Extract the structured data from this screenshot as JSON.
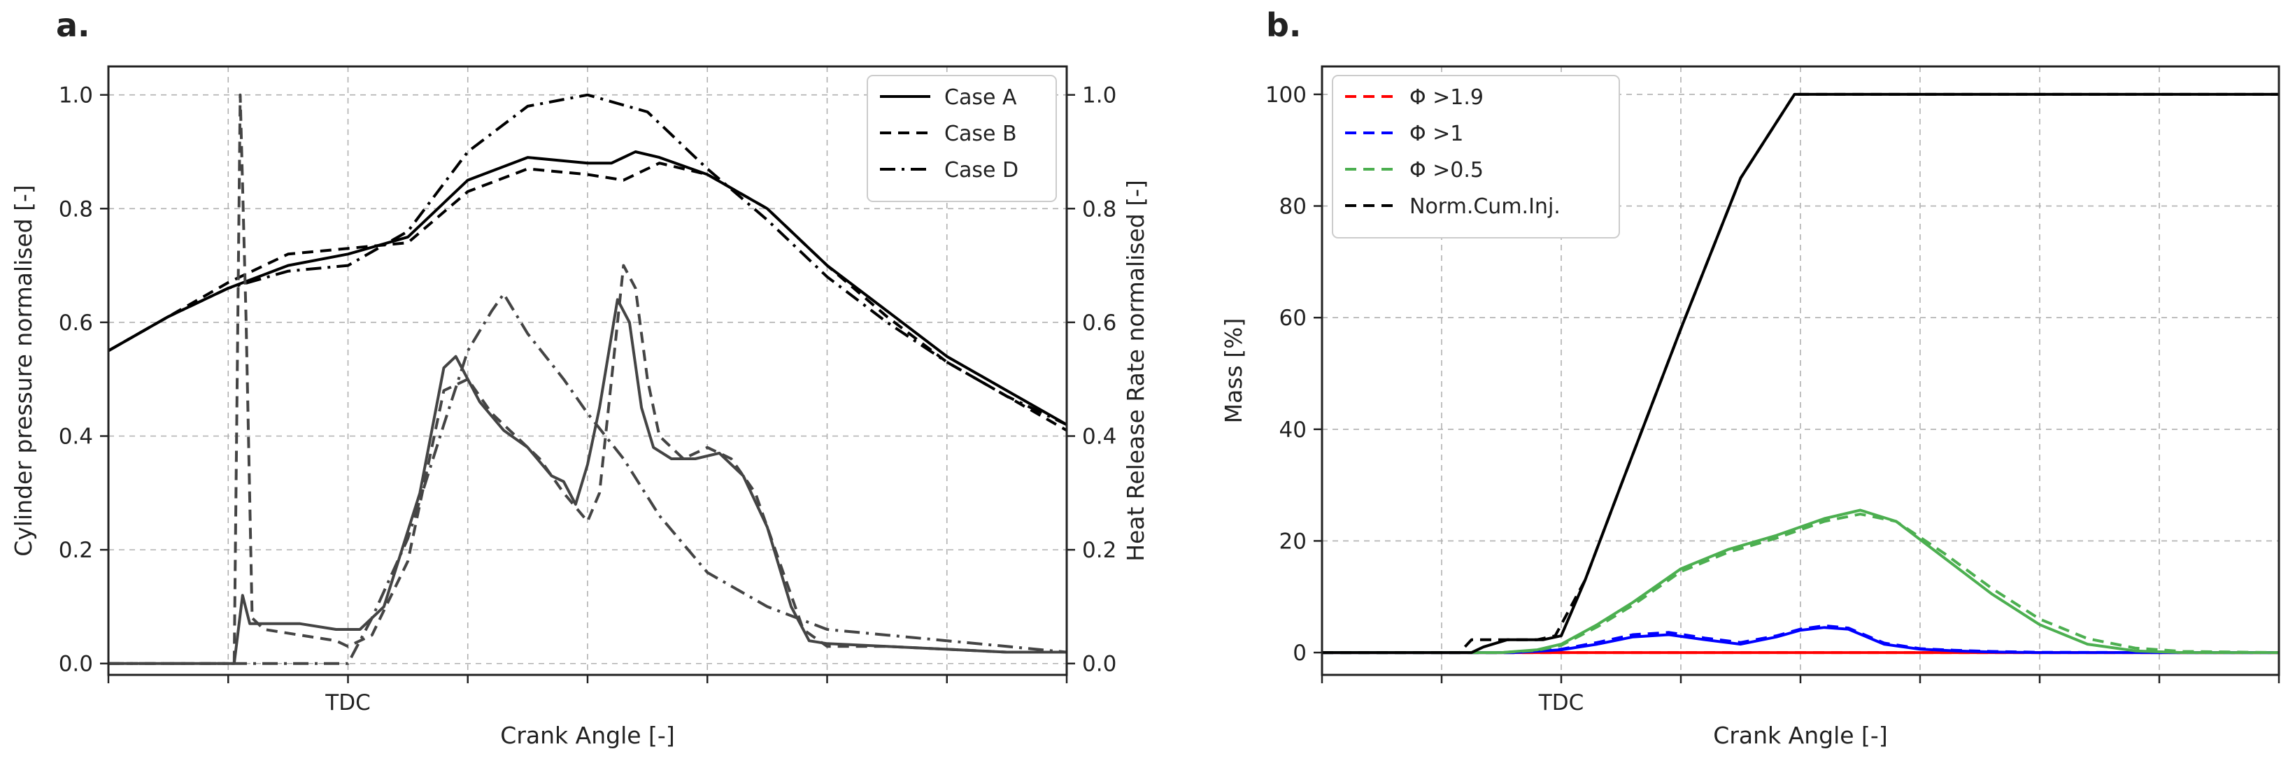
{
  "chart_data": [
    {
      "panel": "a.",
      "type": "line",
      "xlabel": "Crank Angle [-]",
      "ylabel": "Cylinder pressure normalised [-]",
      "ylabel_right": "Heat Release Rate normalised [-]",
      "x_tick_labels": [
        "",
        "",
        "TDC",
        "",
        "",
        "",
        "",
        "",
        ""
      ],
      "xlim": [
        0,
        8
      ],
      "ylim": [
        -0.02,
        1.05
      ],
      "ylim_right": [
        -0.02,
        1.05
      ],
      "y_ticks": [
        "0.0",
        "0.2",
        "0.4",
        "0.6",
        "0.8",
        "1.0"
      ],
      "y_ticks_right": [
        "0.0",
        "0.2",
        "0.4",
        "0.6",
        "0.8",
        "1.0"
      ],
      "grid": true,
      "legend_position": "upper right",
      "legend": [
        {
          "label": "Case A",
          "style": "solid"
        },
        {
          "label": "Case B",
          "style": "dashed"
        },
        {
          "label": "Case D",
          "style": "dashdot"
        }
      ],
      "series": [
        {
          "name": "Case A",
          "kind": "pressure",
          "style": "solid",
          "color": "#000000",
          "x": [
            0,
            0.5,
            1.0,
            1.5,
            2.0,
            2.5,
            3.0,
            3.5,
            4.0,
            4.2,
            4.4,
            4.6,
            5.0,
            5.5,
            6.0,
            6.5,
            7.0,
            7.5,
            8.0
          ],
          "y": [
            0.55,
            0.61,
            0.66,
            0.7,
            0.72,
            0.75,
            0.85,
            0.89,
            0.88,
            0.88,
            0.9,
            0.89,
            0.86,
            0.8,
            0.7,
            0.62,
            0.54,
            0.48,
            0.42
          ]
        },
        {
          "name": "Case B",
          "kind": "pressure",
          "style": "dashed",
          "color": "#000000",
          "x": [
            0,
            0.5,
            1.0,
            1.5,
            2.0,
            2.5,
            3.0,
            3.5,
            4.0,
            4.3,
            4.6,
            5.0,
            5.5,
            6.0,
            6.5,
            7.0,
            7.5,
            8.0
          ],
          "y": [
            0.55,
            0.61,
            0.67,
            0.72,
            0.73,
            0.74,
            0.83,
            0.87,
            0.86,
            0.85,
            0.88,
            0.86,
            0.8,
            0.7,
            0.61,
            0.53,
            0.47,
            0.41
          ]
        },
        {
          "name": "Case D",
          "kind": "pressure",
          "style": "dashdot",
          "color": "#000000",
          "x": [
            0,
            0.5,
            1.0,
            1.5,
            2.0,
            2.5,
            3.0,
            3.5,
            4.0,
            4.5,
            5.0,
            5.5,
            6.0,
            6.5,
            7.0,
            7.5,
            8.0
          ],
          "y": [
            0.55,
            0.61,
            0.66,
            0.69,
            0.7,
            0.76,
            0.9,
            0.98,
            1.0,
            0.97,
            0.87,
            0.78,
            0.68,
            0.6,
            0.53,
            0.47,
            0.42
          ]
        },
        {
          "name": "Case A",
          "kind": "heat release",
          "style": "solid",
          "color": "#444444",
          "x": [
            0,
            1.05,
            1.12,
            1.18,
            1.3,
            1.6,
            1.9,
            2.1,
            2.3,
            2.6,
            2.8,
            2.9,
            3.1,
            3.3,
            3.5,
            3.7,
            3.8,
            3.9,
            4.0,
            4.1,
            4.25,
            4.35,
            4.45,
            4.55,
            4.7,
            4.9,
            5.1,
            5.3,
            5.5,
            5.7,
            5.85,
            6.0,
            6.5,
            7.0,
            7.5,
            8.0
          ],
          "y": [
            0.0,
            0.0,
            0.12,
            0.07,
            0.07,
            0.07,
            0.06,
            0.06,
            0.1,
            0.3,
            0.52,
            0.54,
            0.46,
            0.41,
            0.38,
            0.33,
            0.32,
            0.28,
            0.35,
            0.45,
            0.64,
            0.6,
            0.45,
            0.38,
            0.36,
            0.36,
            0.37,
            0.33,
            0.24,
            0.1,
            0.04,
            0.035,
            0.03,
            0.025,
            0.02,
            0.02
          ]
        },
        {
          "name": "Case B",
          "kind": "heat release",
          "style": "dashed",
          "color": "#444444",
          "x": [
            0,
            1.05,
            1.1,
            1.15,
            1.2,
            1.3,
            1.9,
            2.0,
            2.2,
            2.5,
            2.8,
            3.0,
            3.2,
            3.4,
            3.6,
            3.8,
            4.0,
            4.1,
            4.2,
            4.3,
            4.4,
            4.5,
            4.6,
            4.8,
            5.0,
            5.2,
            5.4,
            5.6,
            5.8,
            6.0,
            6.5,
            7.0,
            7.5,
            8.0
          ],
          "y": [
            0.0,
            0.0,
            1.0,
            0.6,
            0.08,
            0.06,
            0.04,
            0.03,
            0.05,
            0.18,
            0.48,
            0.5,
            0.44,
            0.4,
            0.36,
            0.3,
            0.25,
            0.3,
            0.5,
            0.7,
            0.66,
            0.5,
            0.4,
            0.36,
            0.38,
            0.36,
            0.3,
            0.18,
            0.06,
            0.03,
            0.03,
            0.025,
            0.02,
            0.02
          ]
        },
        {
          "name": "Case D",
          "kind": "heat release",
          "style": "dashdot",
          "color": "#444444",
          "x": [
            0,
            1.0,
            1.3,
            1.5,
            1.8,
            2.0,
            2.2,
            2.5,
            2.8,
            3.0,
            3.2,
            3.3,
            3.5,
            3.8,
            4.0,
            4.3,
            4.6,
            5.0,
            5.5,
            6.0,
            6.5,
            7.0,
            7.5,
            8.0
          ],
          "y": [
            0.0,
            0.0,
            0.0,
            0.0,
            0.0,
            0.0,
            0.08,
            0.22,
            0.42,
            0.55,
            0.62,
            0.65,
            0.58,
            0.5,
            0.44,
            0.36,
            0.26,
            0.16,
            0.1,
            0.06,
            0.05,
            0.04,
            0.03,
            0.02
          ]
        }
      ]
    },
    {
      "panel": "b.",
      "type": "line",
      "xlabel": "Crank Angle [-]",
      "ylabel": "Mass [%]",
      "x_tick_labels": [
        "",
        "",
        "TDC",
        "",
        "",
        "",
        "",
        "",
        ""
      ],
      "xlim": [
        0,
        8
      ],
      "ylim": [
        -4,
        105
      ],
      "y_ticks": [
        "0",
        "20",
        "40",
        "60",
        "80",
        "100"
      ],
      "grid": true,
      "legend_position": "upper left",
      "legend": [
        {
          "label": "Φ >1.9",
          "style": "dashed",
          "color": "#ff0000"
        },
        {
          "label": "Φ >1",
          "style": "dashed",
          "color": "#0000ff"
        },
        {
          "label": "Φ >0.5",
          "style": "dashed",
          "color": "#4caf50"
        },
        {
          "label": "Norm.Cum.Inj.",
          "style": "dashed",
          "color": "#000000"
        }
      ],
      "series": [
        {
          "name": "Φ >1.9",
          "style": "solid",
          "color": "#ff0000",
          "x": [
            0,
            1.5,
            2.0,
            7.0,
            8.0
          ],
          "y": [
            0,
            0,
            0,
            0,
            0
          ]
        },
        {
          "name": "Φ >1.9",
          "style": "dashed",
          "color": "#ff0000",
          "x": [
            0,
            8.0
          ],
          "y": [
            0,
            0
          ]
        },
        {
          "name": "Φ >1",
          "style": "solid",
          "color": "#0000ff",
          "x": [
            0,
            1.6,
            2.0,
            2.3,
            2.6,
            2.9,
            3.2,
            3.5,
            3.8,
            4.0,
            4.2,
            4.4,
            4.7,
            5.0,
            5.3,
            5.6,
            6.0,
            7.0,
            8.0
          ],
          "y": [
            0,
            0,
            0.5,
            1.5,
            2.8,
            3.2,
            2.3,
            1.5,
            2.8,
            4.0,
            4.5,
            4.2,
            1.5,
            0.6,
            0.3,
            0.1,
            0,
            0,
            0
          ]
        },
        {
          "name": "Φ >1",
          "style": "dashed",
          "color": "#0000ff",
          "x": [
            0,
            1.6,
            2.0,
            2.3,
            2.6,
            2.9,
            3.2,
            3.5,
            3.8,
            4.0,
            4.2,
            4.4,
            4.7,
            5.0,
            5.3,
            5.6,
            6.0,
            7.0,
            8.0
          ],
          "y": [
            0,
            0,
            0.6,
            1.8,
            3.2,
            3.6,
            2.6,
            1.8,
            3.0,
            4.2,
            4.8,
            4.4,
            1.7,
            0.7,
            0.4,
            0.2,
            0.05,
            0,
            0
          ]
        },
        {
          "name": "Φ >0.5",
          "style": "solid",
          "color": "#4caf50",
          "x": [
            0,
            1.5,
            1.8,
            2.0,
            2.3,
            2.6,
            3.0,
            3.4,
            3.8,
            4.2,
            4.5,
            4.8,
            5.2,
            5.6,
            6.0,
            6.4,
            6.8,
            7.2,
            8.0
          ],
          "y": [
            0,
            0,
            0.5,
            1.5,
            5.0,
            9.0,
            15.0,
            18.5,
            21.0,
            24.0,
            25.5,
            23.5,
            17.0,
            10.5,
            5.0,
            1.5,
            0.3,
            0,
            0
          ]
        },
        {
          "name": "Φ >0.5",
          "style": "dashed",
          "color": "#4caf50",
          "x": [
            0,
            1.5,
            1.8,
            2.0,
            2.3,
            2.6,
            3.0,
            3.4,
            3.8,
            4.2,
            4.5,
            4.8,
            5.2,
            5.6,
            6.0,
            6.4,
            6.8,
            7.2,
            8.0
          ],
          "y": [
            0,
            0,
            0.4,
            1.3,
            4.6,
            8.5,
            14.5,
            18.0,
            20.5,
            23.5,
            24.8,
            23.5,
            17.8,
            11.5,
            6.0,
            2.5,
            0.8,
            0.2,
            0
          ]
        },
        {
          "name": "Norm.Cum.Inj.",
          "style": "solid",
          "color": "#000000",
          "x": [
            0,
            1.25,
            1.35,
            1.55,
            1.85,
            2.0,
            2.2,
            2.5,
            3.0,
            3.5,
            3.95,
            4.3,
            8.0
          ],
          "y": [
            0,
            0,
            1.0,
            2.3,
            2.3,
            3.0,
            13.0,
            30.0,
            58.0,
            85.0,
            100.0,
            100.0,
            100.0
          ]
        },
        {
          "name": "Norm.Cum.Inj.",
          "style": "dashed",
          "color": "#000000",
          "x": [
            0,
            1.15,
            1.25,
            1.45,
            1.8,
            1.95,
            2.2,
            2.5,
            3.0,
            3.5,
            3.95,
            4.3,
            8.0
          ],
          "y": [
            0,
            0,
            2.3,
            2.3,
            2.3,
            3.0,
            13.0,
            30.0,
            58.0,
            85.0,
            100.0,
            100.0,
            100.0
          ]
        }
      ]
    }
  ]
}
